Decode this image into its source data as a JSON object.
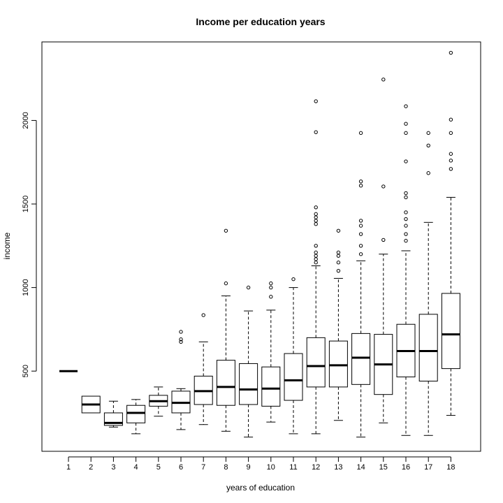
{
  "chart_data": {
    "type": "boxplot",
    "title": "Income per education years",
    "xlabel": "years of education",
    "ylabel": "income",
    "ylim": [
      20,
      2470
    ],
    "yticks": [
      500,
      1000,
      1500,
      2000
    ],
    "categories": [
      "1",
      "2",
      "3",
      "4",
      "5",
      "6",
      "7",
      "8",
      "9",
      "10",
      "11",
      "12",
      "13",
      "14",
      "15",
      "16",
      "17",
      "18"
    ],
    "boxes": [
      {
        "category": "1",
        "whisker_low": 500,
        "q1": 500,
        "median": 500,
        "q3": 500,
        "whisker_high": 500,
        "outliers": []
      },
      {
        "category": "2",
        "whisker_low": 250,
        "q1": 250,
        "median": 300,
        "q3": 350,
        "whisker_high": 350,
        "outliers": []
      },
      {
        "category": "3",
        "whisker_low": 165,
        "q1": 175,
        "median": 190,
        "q3": 250,
        "whisker_high": 320,
        "outliers": []
      },
      {
        "category": "4",
        "whisker_low": 125,
        "q1": 190,
        "median": 250,
        "q3": 295,
        "whisker_high": 330,
        "outliers": []
      },
      {
        "category": "5",
        "whisker_low": 230,
        "q1": 290,
        "median": 320,
        "q3": 355,
        "whisker_high": 405,
        "outliers": []
      },
      {
        "category": "6",
        "whisker_low": 150,
        "q1": 250,
        "median": 310,
        "q3": 380,
        "whisker_high": 395,
        "outliers": [
          675,
          690,
          735
        ]
      },
      {
        "category": "7",
        "whisker_low": 180,
        "q1": 300,
        "median": 380,
        "q3": 470,
        "whisker_high": 675,
        "outliers": [
          835
        ]
      },
      {
        "category": "8",
        "whisker_low": 140,
        "q1": 295,
        "median": 405,
        "q3": 565,
        "whisker_high": 950,
        "outliers": [
          1025,
          1340
        ]
      },
      {
        "category": "9",
        "whisker_low": 105,
        "q1": 300,
        "median": 390,
        "q3": 545,
        "whisker_high": 860,
        "outliers": [
          1000
        ]
      },
      {
        "category": "10",
        "whisker_low": 195,
        "q1": 290,
        "median": 395,
        "q3": 525,
        "whisker_high": 865,
        "outliers": [
          945,
          1000,
          1025
        ]
      },
      {
        "category": "11",
        "whisker_low": 125,
        "q1": 325,
        "median": 445,
        "q3": 605,
        "whisker_high": 1000,
        "outliers": [
          1050
        ]
      },
      {
        "category": "12",
        "whisker_low": 125,
        "q1": 405,
        "median": 530,
        "q3": 700,
        "whisker_high": 1130,
        "outliers": [
          1150,
          1170,
          1190,
          1210,
          1250,
          1380,
          1400,
          1420,
          1440,
          1480,
          1930,
          2115
        ]
      },
      {
        "category": "13",
        "whisker_low": 205,
        "q1": 405,
        "median": 535,
        "q3": 680,
        "whisker_high": 1055,
        "outliers": [
          1100,
          1150,
          1190,
          1210,
          1340
        ]
      },
      {
        "category": "14",
        "whisker_low": 105,
        "q1": 420,
        "median": 580,
        "q3": 725,
        "whisker_high": 1160,
        "outliers": [
          1200,
          1250,
          1320,
          1370,
          1400,
          1610,
          1635,
          1925
        ]
      },
      {
        "category": "15",
        "whisker_low": 190,
        "q1": 360,
        "median": 540,
        "q3": 720,
        "whisker_high": 1200,
        "outliers": [
          1285,
          1605,
          2245
        ]
      },
      {
        "category": "16",
        "whisker_low": 115,
        "q1": 465,
        "median": 620,
        "q3": 780,
        "whisker_high": 1220,
        "outliers": [
          1280,
          1320,
          1370,
          1410,
          1450,
          1540,
          1565,
          1755,
          1925,
          1980,
          2085
        ]
      },
      {
        "category": "17",
        "whisker_low": 115,
        "q1": 440,
        "median": 620,
        "q3": 840,
        "whisker_high": 1390,
        "outliers": [
          1685,
          1850,
          1925
        ]
      },
      {
        "category": "18",
        "whisker_low": 235,
        "q1": 515,
        "median": 720,
        "q3": 965,
        "whisker_high": 1540,
        "outliers": [
          1710,
          1760,
          1800,
          1925,
          2005,
          2405
        ]
      }
    ]
  }
}
